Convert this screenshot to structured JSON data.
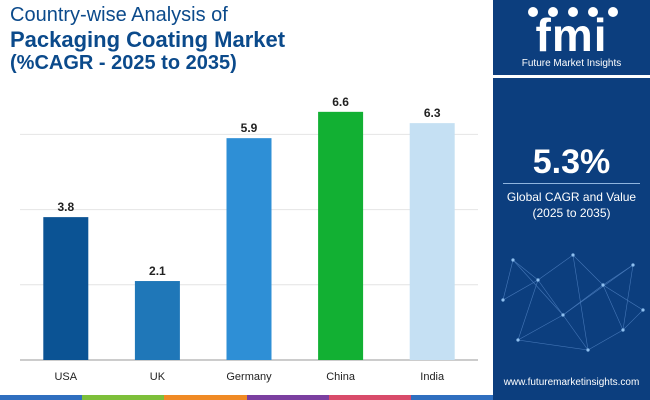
{
  "header": {
    "line1": "Country-wise Analysis of",
    "line2": "Packaging Coating Market",
    "line3": "(%CAGR - 2025 to 2035)"
  },
  "chart_data": {
    "type": "bar",
    "title": "Country-wise Analysis of Packaging Coating Market (%CAGR - 2025 to 2035)",
    "categories": [
      "USA",
      "UK",
      "Germany",
      "China",
      "India"
    ],
    "values": [
      3.8,
      2.1,
      5.9,
      6.6,
      6.3
    ],
    "colors": [
      "#0b5394",
      "#1f77b8",
      "#2e8fd6",
      "#12b033",
      "#c5e0f3"
    ],
    "ylim": [
      0,
      7.5
    ],
    "grid": true,
    "xlabel": "",
    "ylabel": ""
  },
  "sidebar": {
    "logo_text": "fmi",
    "logo_subtitle": "Future Market Insights",
    "kpi_value": "5.3%",
    "kpi_label": "Global CAGR and Value",
    "kpi_period": "(2025 to 2035)",
    "website": "www.futuremarketinsights.com",
    "logo_icons": [
      "tech-icon",
      "chat-icon",
      "rocket-icon",
      "person-icon",
      "gear-icon"
    ]
  },
  "bottom_strip_colors": [
    "#2f6fbf",
    "#7dbf3a",
    "#f08a24",
    "#7b3fa0",
    "#d94b6a",
    "#2f6fbf"
  ]
}
